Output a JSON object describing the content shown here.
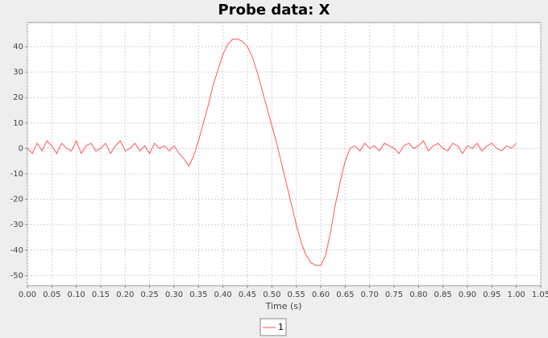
{
  "chart_data": {
    "type": "line",
    "title": "Probe data: X",
    "x_label": "Time (s)",
    "x": [
      0,
      0.01,
      0.02,
      0.03,
      0.04,
      0.05,
      0.06,
      0.07,
      0.08,
      0.09,
      0.1,
      0.11,
      0.12,
      0.13,
      0.14,
      0.15,
      0.16,
      0.17,
      0.18,
      0.19,
      0.2,
      0.21,
      0.22,
      0.23,
      0.24,
      0.25,
      0.26,
      0.27,
      0.28,
      0.29,
      0.3,
      0.31,
      0.32,
      0.33,
      0.34,
      0.35,
      0.36,
      0.37,
      0.38,
      0.39,
      0.4,
      0.41,
      0.42,
      0.43,
      0.44,
      0.45,
      0.46,
      0.47,
      0.48,
      0.49,
      0.5,
      0.51,
      0.52,
      0.53,
      0.54,
      0.55,
      0.56,
      0.57,
      0.58,
      0.59,
      0.6,
      0.61,
      0.62,
      0.63,
      0.64,
      0.65,
      0.66,
      0.67,
      0.68,
      0.69,
      0.7,
      0.71,
      0.72,
      0.73,
      0.74,
      0.75,
      0.76,
      0.77,
      0.78,
      0.79,
      0.8,
      0.81,
      0.82,
      0.83,
      0.84,
      0.85,
      0.86,
      0.87,
      0.88,
      0.89,
      0.9,
      0.91,
      0.92,
      0.93,
      0.94,
      0.95,
      0.96,
      0.97,
      0.98,
      0.99,
      1
    ],
    "series": [
      {
        "name": "1",
        "color": "#ff5555",
        "values": [
          0,
          -2,
          2,
          -1,
          3,
          1,
          -2,
          2,
          0,
          -1,
          3,
          -2,
          1,
          2,
          -1,
          0,
          2,
          -2,
          1,
          3,
          -1,
          0,
          2,
          -1,
          1,
          -2,
          2,
          0,
          1,
          -1,
          1,
          -2,
          -4,
          -7,
          -3,
          3,
          10,
          17,
          25,
          31,
          37,
          41,
          43,
          43,
          42,
          40,
          36,
          30,
          23,
          16,
          9,
          2,
          -6,
          -14,
          -22,
          -30,
          -37,
          -42,
          -45,
          -46,
          -46,
          -42,
          -33,
          -22,
          -13,
          -5,
          0,
          1,
          -1,
          2,
          0,
          1,
          -1,
          2,
          1,
          0,
          -2,
          1,
          2,
          0,
          1,
          3,
          -1,
          1,
          2,
          0,
          -1,
          2,
          1,
          -2,
          1,
          0,
          2,
          -1,
          1,
          2,
          0,
          -1,
          1,
          0,
          2
        ]
      }
    ],
    "xlim": [
      0,
      1.05
    ],
    "ylim": [
      -54,
      49.5
    ],
    "xticks": [
      {
        "value": 0,
        "label": "0.00"
      },
      0.05,
      {
        "value": 0.1,
        "label": "0.10"
      },
      0.15,
      {
        "value": 0.2,
        "label": "0.20"
      },
      0.25,
      {
        "value": 0.3,
        "label": "0.30"
      },
      0.35,
      {
        "value": 0.4,
        "label": "0.40"
      },
      0.45,
      {
        "value": 0.5,
        "label": "0.50"
      },
      0.55,
      {
        "value": 0.6,
        "label": "0.60"
      },
      0.65,
      {
        "value": 0.7,
        "label": "0.70"
      },
      0.75,
      {
        "value": 0.8,
        "label": "0.80"
      },
      0.85,
      {
        "value": 0.9,
        "label": "0.90"
      },
      0.95,
      {
        "value": 1,
        "label": "1.00"
      },
      1.05
    ],
    "yticks": [
      -50,
      -40,
      -30,
      -20,
      -10,
      0,
      10,
      20,
      30,
      40
    ],
    "grid": true
  }
}
